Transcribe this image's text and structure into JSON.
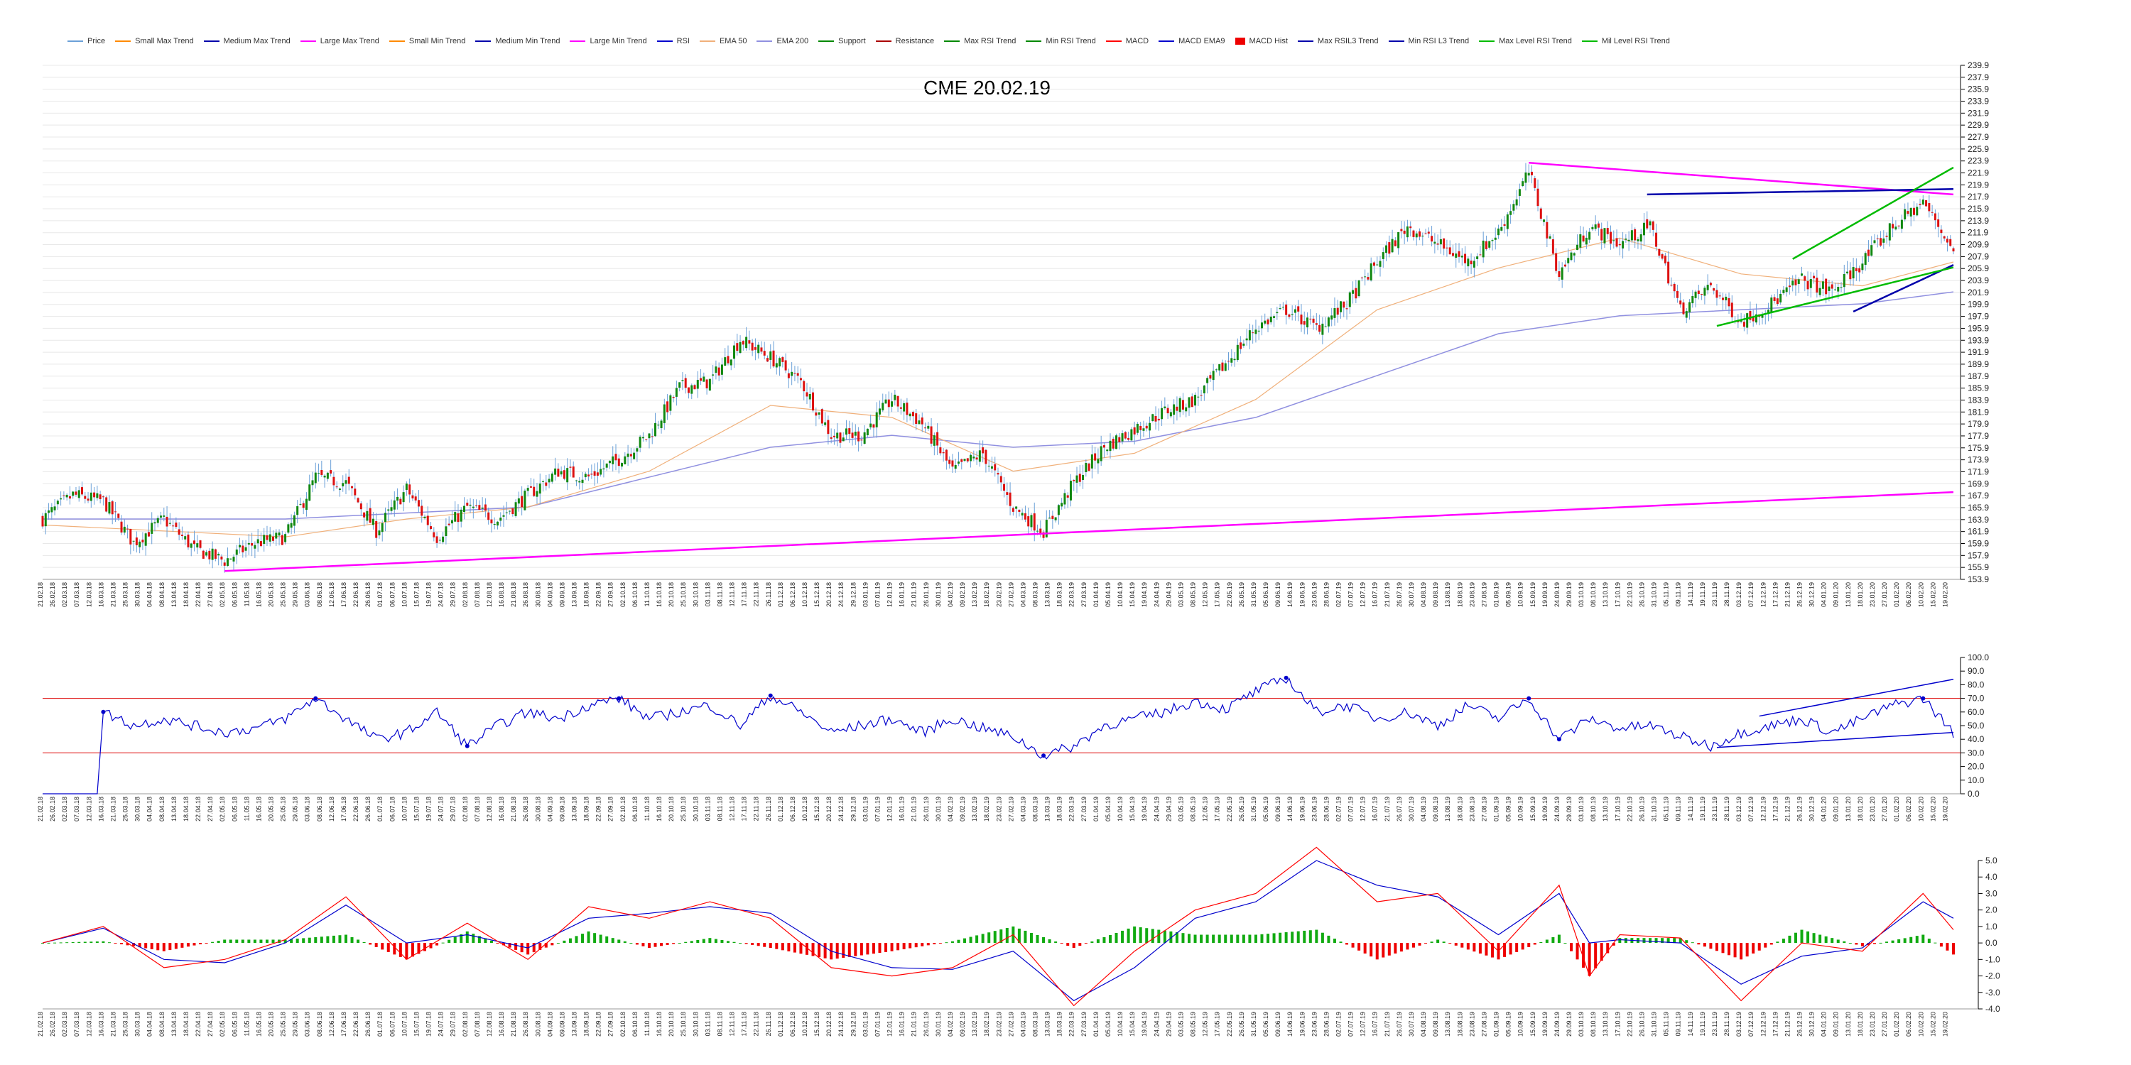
{
  "title": "CME 20.02.19",
  "legend": [
    {
      "label": "Price",
      "color": "#6aa0d8"
    },
    {
      "label": "Small Max Trend",
      "color": "#ff8a00"
    },
    {
      "label": "Medium Max Trend",
      "color": "#0000aa"
    },
    {
      "label": "Large Max Trend",
      "color": "#ff00ff"
    },
    {
      "label": "Small Min Trend",
      "color": "#ff8a00"
    },
    {
      "label": "Medium Min Trend",
      "color": "#0000aa"
    },
    {
      "label": "Large Min Trend",
      "color": "#ff00ff"
    },
    {
      "label": "RSI",
      "color": "#0000cc"
    },
    {
      "label": "EMA 50",
      "color": "#f0b07a"
    },
    {
      "label": "EMA 200",
      "color": "#9090e0"
    },
    {
      "label": "Support",
      "color": "#008800"
    },
    {
      "label": "Resistance",
      "color": "#aa0000"
    },
    {
      "label": "Max RSI Trend",
      "color": "#008800"
    },
    {
      "label": "Min RSI Trend",
      "color": "#008800"
    },
    {
      "label": "MACD",
      "color": "#ff0000"
    },
    {
      "label": "MACD EMA9",
      "color": "#0000cc"
    },
    {
      "label": "MACD Hist",
      "color": "#ee0000",
      "box": true
    },
    {
      "label": "Max RSIL3 Trend",
      "color": "#0000aa"
    },
    {
      "label": "Min RSI L3 Trend",
      "color": "#0000aa"
    },
    {
      "label": "Max Level RSI Trend",
      "color": "#00bb00"
    },
    {
      "label": "Mil Level RSI Trend",
      "color": "#00bb00"
    }
  ],
  "chart_data": [
    {
      "type": "candlestick",
      "panel": "price",
      "ylim": [
        153.9,
        239.9
      ],
      "y_ticks": [
        "239.9",
        "237.9",
        "235.9",
        "233.9",
        "231.9",
        "229.9",
        "227.9",
        "225.9",
        "223.9",
        "221.9",
        "219.9",
        "217.9",
        "215.9",
        "213.9",
        "211.9",
        "209.9",
        "207.9",
        "205.9",
        "203.9",
        "201.9",
        "199.9",
        "197.9",
        "195.9",
        "193.9",
        "191.9",
        "189.9",
        "187.9",
        "185.9",
        "183.9",
        "181.9",
        "179.9",
        "177.9",
        "175.9",
        "173.9",
        "171.9",
        "169.9",
        "167.9",
        "165.9",
        "163.9",
        "161.9",
        "159.9",
        "157.9",
        "155.9",
        "153.9"
      ],
      "x_range": [
        "21.02.18",
        "19.02.20"
      ],
      "close_path": [
        [
          0,
          164
        ],
        [
          10,
          168
        ],
        [
          20,
          167
        ],
        [
          30,
          160
        ],
        [
          40,
          164
        ],
        [
          50,
          159
        ],
        [
          60,
          157
        ],
        [
          70,
          160
        ],
        [
          80,
          161
        ],
        [
          90,
          171
        ],
        [
          100,
          170
        ],
        [
          110,
          162
        ],
        [
          120,
          169
        ],
        [
          130,
          161
        ],
        [
          140,
          166
        ],
        [
          150,
          164
        ],
        [
          160,
          168
        ],
        [
          170,
          172
        ],
        [
          180,
          171
        ],
        [
          190,
          174
        ],
        [
          200,
          178
        ],
        [
          210,
          186
        ],
        [
          220,
          187
        ],
        [
          230,
          194
        ],
        [
          240,
          191
        ],
        [
          250,
          187
        ],
        [
          260,
          178
        ],
        [
          270,
          178
        ],
        [
          280,
          184
        ],
        [
          290,
          180
        ],
        [
          300,
          172
        ],
        [
          310,
          175
        ],
        [
          320,
          166
        ],
        [
          330,
          162
        ],
        [
          340,
          170
        ],
        [
          350,
          176
        ],
        [
          360,
          179
        ],
        [
          370,
          182
        ],
        [
          380,
          184
        ],
        [
          390,
          190
        ],
        [
          400,
          196
        ],
        [
          410,
          199
        ],
        [
          420,
          196
        ],
        [
          430,
          200
        ],
        [
          440,
          207
        ],
        [
          450,
          213
        ],
        [
          460,
          210
        ],
        [
          470,
          207
        ],
        [
          480,
          212
        ],
        [
          490,
          222
        ],
        [
          500,
          205
        ],
        [
          510,
          213
        ],
        [
          520,
          210
        ],
        [
          530,
          213
        ],
        [
          540,
          199
        ],
        [
          550,
          203
        ],
        [
          560,
          197
        ],
        [
          570,
          200
        ],
        [
          580,
          204
        ],
        [
          590,
          202
        ],
        [
          600,
          207
        ],
        [
          610,
          213
        ],
        [
          620,
          217
        ],
        [
          630,
          209
        ]
      ],
      "ema50_path": [
        [
          0,
          163
        ],
        [
          40,
          162
        ],
        [
          80,
          161
        ],
        [
          120,
          164
        ],
        [
          160,
          166
        ],
        [
          200,
          172
        ],
        [
          240,
          183
        ],
        [
          280,
          181
        ],
        [
          320,
          172
        ],
        [
          360,
          175
        ],
        [
          400,
          184
        ],
        [
          440,
          199
        ],
        [
          480,
          206
        ],
        [
          520,
          211
        ],
        [
          560,
          205
        ],
        [
          600,
          203
        ],
        [
          630,
          207
        ]
      ],
      "ema200_path": [
        [
          0,
          164
        ],
        [
          80,
          164
        ],
        [
          160,
          166
        ],
        [
          240,
          176
        ],
        [
          280,
          178
        ],
        [
          320,
          176
        ],
        [
          360,
          177
        ],
        [
          400,
          181
        ],
        [
          440,
          188
        ],
        [
          480,
          195
        ],
        [
          520,
          198
        ],
        [
          560,
          199
        ],
        [
          600,
          200
        ],
        [
          630,
          202
        ]
      ],
      "trend_lines": [
        {
          "name": "large-min-trend",
          "color": "#ff00ff",
          "from": [
            60,
            155.3
          ],
          "to": [
            630,
            168.5
          ]
        },
        {
          "name": "large-max-trend",
          "color": "#ff00ff",
          "from": [
            490,
            223.6
          ],
          "to": [
            630,
            218.3
          ]
        },
        {
          "name": "medium-max-trend",
          "color": "#0000aa",
          "from": [
            529,
            218.3
          ],
          "to": [
            630,
            219.2
          ]
        },
        {
          "name": "medium-min-trend",
          "color": "#0000aa",
          "from": [
            597,
            198.7
          ],
          "to": [
            630,
            206.5
          ]
        },
        {
          "name": "max-level-rsi-trend",
          "color": "#00bb00",
          "from": [
            577,
            207.5
          ],
          "to": [
            630,
            222.8
          ]
        },
        {
          "name": "mil-level-rsi-trend",
          "color": "#00bb00",
          "from": [
            552,
            196.3
          ],
          "to": [
            630,
            206.1
          ]
        }
      ]
    },
    {
      "type": "line",
      "panel": "rsi",
      "ylim": [
        0,
        100
      ],
      "y_ticks": [
        "100.0",
        "90.0",
        "80.0",
        "70.0",
        "60.0",
        "50.0",
        "40.0",
        "30.0",
        "20.0",
        "10.0",
        "0.0"
      ],
      "levels": [
        70,
        30
      ],
      "path": [
        [
          0,
          0
        ],
        [
          18,
          0
        ],
        [
          20,
          60
        ],
        [
          30,
          50
        ],
        [
          40,
          55
        ],
        [
          50,
          50
        ],
        [
          60,
          45
        ],
        [
          70,
          48
        ],
        [
          80,
          55
        ],
        [
          90,
          70
        ],
        [
          100,
          55
        ],
        [
          110,
          40
        ],
        [
          120,
          45
        ],
        [
          130,
          60
        ],
        [
          140,
          35
        ],
        [
          150,
          50
        ],
        [
          160,
          60
        ],
        [
          170,
          55
        ],
        [
          180,
          65
        ],
        [
          190,
          70
        ],
        [
          200,
          55
        ],
        [
          210,
          60
        ],
        [
          220,
          65
        ],
        [
          230,
          50
        ],
        [
          240,
          72
        ],
        [
          250,
          60
        ],
        [
          260,
          45
        ],
        [
          270,
          50
        ],
        [
          280,
          55
        ],
        [
          290,
          45
        ],
        [
          300,
          55
        ],
        [
          310,
          48
        ],
        [
          320,
          42
        ],
        [
          330,
          28
        ],
        [
          340,
          35
        ],
        [
          350,
          50
        ],
        [
          360,
          55
        ],
        [
          370,
          60
        ],
        [
          380,
          68
        ],
        [
          390,
          62
        ],
        [
          400,
          75
        ],
        [
          410,
          85
        ],
        [
          420,
          60
        ],
        [
          430,
          65
        ],
        [
          440,
          55
        ],
        [
          450,
          60
        ],
        [
          460,
          50
        ],
        [
          470,
          65
        ],
        [
          480,
          55
        ],
        [
          490,
          70
        ],
        [
          500,
          40
        ],
        [
          510,
          55
        ],
        [
          520,
          48
        ],
        [
          530,
          50
        ],
        [
          540,
          42
        ],
        [
          550,
          35
        ],
        [
          560,
          45
        ],
        [
          570,
          50
        ],
        [
          580,
          55
        ],
        [
          590,
          45
        ],
        [
          600,
          55
        ],
        [
          610,
          65
        ],
        [
          620,
          70
        ],
        [
          630,
          45
        ]
      ],
      "trend_lines": [
        {
          "name": "max-rsi-trend",
          "color": "#0000cc",
          "from": [
            566,
            57
          ],
          "to": [
            630,
            84
          ]
        },
        {
          "name": "min-rsi-trend",
          "color": "#0000cc",
          "from": [
            552,
            34
          ],
          "to": [
            630,
            45
          ]
        }
      ]
    },
    {
      "type": "bar+line",
      "panel": "macd",
      "ylim": [
        -4.0,
        5.0
      ],
      "y_ticks": [
        "5.0",
        "4.0",
        "3.0",
        "2.0",
        "1.0",
        "0.0",
        "-1.0",
        "-2.0",
        "-3.0",
        "-4.0"
      ],
      "macd_path": [
        [
          0,
          0
        ],
        [
          20,
          1.0
        ],
        [
          40,
          -1.5
        ],
        [
          60,
          -1.0
        ],
        [
          80,
          0.2
        ],
        [
          100,
          2.8
        ],
        [
          120,
          -1.0
        ],
        [
          140,
          1.2
        ],
        [
          160,
          -1.0
        ],
        [
          180,
          2.2
        ],
        [
          200,
          1.5
        ],
        [
          220,
          2.5
        ],
        [
          240,
          1.5
        ],
        [
          260,
          -1.5
        ],
        [
          280,
          -2.0
        ],
        [
          300,
          -1.5
        ],
        [
          320,
          0.5
        ],
        [
          340,
          -3.8
        ],
        [
          360,
          -0.5
        ],
        [
          380,
          2.0
        ],
        [
          400,
          3.0
        ],
        [
          420,
          5.8
        ],
        [
          440,
          2.5
        ],
        [
          460,
          3.0
        ],
        [
          480,
          -0.5
        ],
        [
          500,
          3.5
        ],
        [
          510,
          -2.0
        ],
        [
          520,
          0.5
        ],
        [
          540,
          0.3
        ],
        [
          560,
          -3.5
        ],
        [
          580,
          0.0
        ],
        [
          600,
          -0.5
        ],
        [
          620,
          3.0
        ],
        [
          630,
          0.8
        ]
      ],
      "signal_path": [
        [
          0,
          0
        ],
        [
          20,
          0.9
        ],
        [
          40,
          -1.0
        ],
        [
          60,
          -1.2
        ],
        [
          80,
          0.0
        ],
        [
          100,
          2.3
        ],
        [
          120,
          0.0
        ],
        [
          140,
          0.5
        ],
        [
          160,
          -0.3
        ],
        [
          180,
          1.5
        ],
        [
          200,
          1.8
        ],
        [
          220,
          2.2
        ],
        [
          240,
          1.8
        ],
        [
          260,
          -0.5
        ],
        [
          280,
          -1.5
        ],
        [
          300,
          -1.6
        ],
        [
          320,
          -0.5
        ],
        [
          340,
          -3.5
        ],
        [
          360,
          -1.5
        ],
        [
          380,
          1.5
        ],
        [
          400,
          2.5
        ],
        [
          420,
          5.0
        ],
        [
          440,
          3.5
        ],
        [
          460,
          2.8
        ],
        [
          480,
          0.5
        ],
        [
          500,
          3.0
        ],
        [
          510,
          0.0
        ],
        [
          520,
          0.2
        ],
        [
          540,
          0.0
        ],
        [
          560,
          -2.5
        ],
        [
          580,
          -0.8
        ],
        [
          600,
          -0.3
        ],
        [
          620,
          2.5
        ],
        [
          630,
          1.5
        ]
      ]
    }
  ]
}
